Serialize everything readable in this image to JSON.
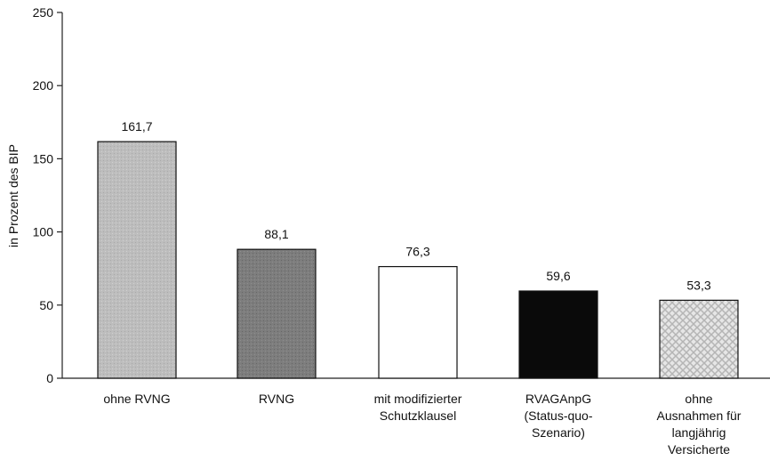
{
  "chart_data": {
    "type": "bar",
    "ylabel": "in Prozent des BIP",
    "ylim": [
      0,
      250
    ],
    "yticks": [
      0,
      50,
      100,
      150,
      200,
      250
    ],
    "grid": false,
    "categories": [
      [
        "ohne RVNG"
      ],
      [
        "RVNG"
      ],
      [
        "mit modifizierter",
        "Schutzklausel"
      ],
      [
        "RVAGAnpG",
        "(Status-quo-",
        "Szenario)"
      ],
      [
        "ohne",
        "Ausnahmen für",
        "langjährig",
        "Versicherte"
      ]
    ],
    "values": [
      161.7,
      88.1,
      76.3,
      59.6,
      53.3
    ],
    "value_labels": [
      "161,7",
      "88,1",
      "76,3",
      "59,6",
      "53,3"
    ],
    "bar_fills": [
      "light-gray",
      "dark-gray",
      "white",
      "black",
      "crosshatch"
    ]
  }
}
